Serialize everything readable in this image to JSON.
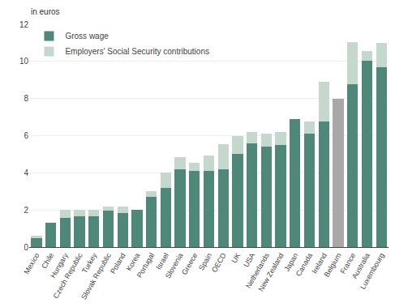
{
  "chart_data": {
    "type": "bar",
    "stacked": true,
    "ylabel": "in euros",
    "categories": [
      "Mexico",
      "Chile",
      "Hungary",
      "Czech Republic",
      "Turkey",
      "Slovak Republic",
      "Poland",
      "Korea",
      "Portugal",
      "Israel",
      "Slovenia",
      "Greece",
      "Spain",
      "OECD",
      "UK",
      "USA",
      "Netherlands",
      "New Zealand",
      "Japan",
      "Canada",
      "Ireland",
      "Belgium",
      "France",
      "Australia",
      "Luxembourg"
    ],
    "series": [
      {
        "name": "Gross wage",
        "values": [
          0.5,
          1.3,
          1.55,
          1.65,
          1.65,
          1.95,
          1.85,
          2.0,
          2.7,
          3.2,
          4.2,
          4.1,
          4.1,
          4.2,
          5.0,
          5.6,
          5.4,
          5.5,
          6.9,
          6.1,
          6.75,
          8.0,
          8.75,
          10.05,
          9.7
        ],
        "colors": [
          "#4d8878",
          "#4d8878",
          "#4d8878",
          "#4d8878",
          "#4d8878",
          "#4d8878",
          "#4d8878",
          "#4d8878",
          "#4d8878",
          "#4d8878",
          "#4d8878",
          "#4d8878",
          "#4d8878",
          "#4d8878",
          "#4d8878",
          "#4d8878",
          "#4d8878",
          "#4d8878",
          "#4d8878",
          "#4d8878",
          "#4d8878",
          "#a8a8a8",
          "#4d8878",
          "#4d8878",
          "#4d8878"
        ]
      },
      {
        "name": "Employers' Social Security contributions",
        "values": [
          0.1,
          0.0,
          0.45,
          0.35,
          0.35,
          0.25,
          0.35,
          0.0,
          0.3,
          0.8,
          0.65,
          0.45,
          0.85,
          1.35,
          1.0,
          0.6,
          0.7,
          0.7,
          0.0,
          0.65,
          2.15,
          0.0,
          2.3,
          0.5,
          1.3
        ],
        "color": "#c5d8ce"
      }
    ],
    "ylim": [
      0,
      12
    ],
    "yticks": [
      0,
      2,
      4,
      6,
      8,
      10,
      12
    ],
    "grid": true,
    "legend": "upper left"
  }
}
